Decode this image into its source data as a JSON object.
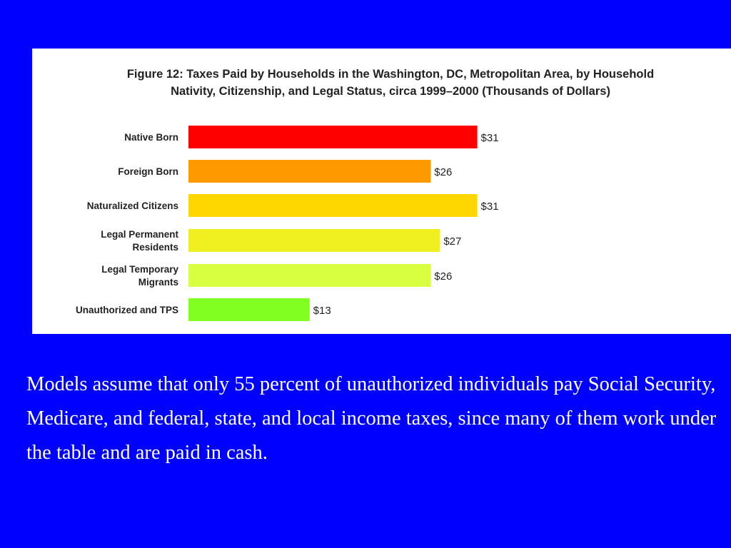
{
  "chart_data": {
    "type": "bar",
    "orientation": "horizontal",
    "title_lines": [
      "Figure 12: Taxes Paid by Households in the Washington, DC, Metropolitan Area, by Household",
      "Nativity, Citizenship, and Legal Status, circa 1999–2000 (Thousands of Dollars)"
    ],
    "categories": [
      [
        "Native Born"
      ],
      [
        "Foreign Born"
      ],
      [
        "Naturalized Citizens"
      ],
      [
        "Legal Permanent",
        "Residents"
      ],
      [
        "Legal Temporary",
        "Migrants"
      ],
      [
        "Unauthorized and TPS"
      ]
    ],
    "values": [
      31,
      26,
      31,
      27,
      26,
      13
    ],
    "value_labels": [
      "$31",
      "$26",
      "$31",
      "$27",
      "$26",
      "$13"
    ],
    "bar_colors": [
      "#FF0000",
      "#FF9900",
      "#FFD700",
      "#F0F020",
      "#D8FF40",
      "#80FF20"
    ],
    "xlim": [
      0,
      31
    ],
    "grid": false,
    "legend": "none"
  },
  "caption": "Models assume that only 55 percent of unauthorized individuals pay  Social Security, Medicare, and federal, state, and local income  taxes, since many of them work under the table and are paid in cash.",
  "colors": {
    "background": "#0000FF",
    "panel": "#FFFFFF",
    "caption_text": "#FFFFFF",
    "chart_text": "#222222"
  }
}
